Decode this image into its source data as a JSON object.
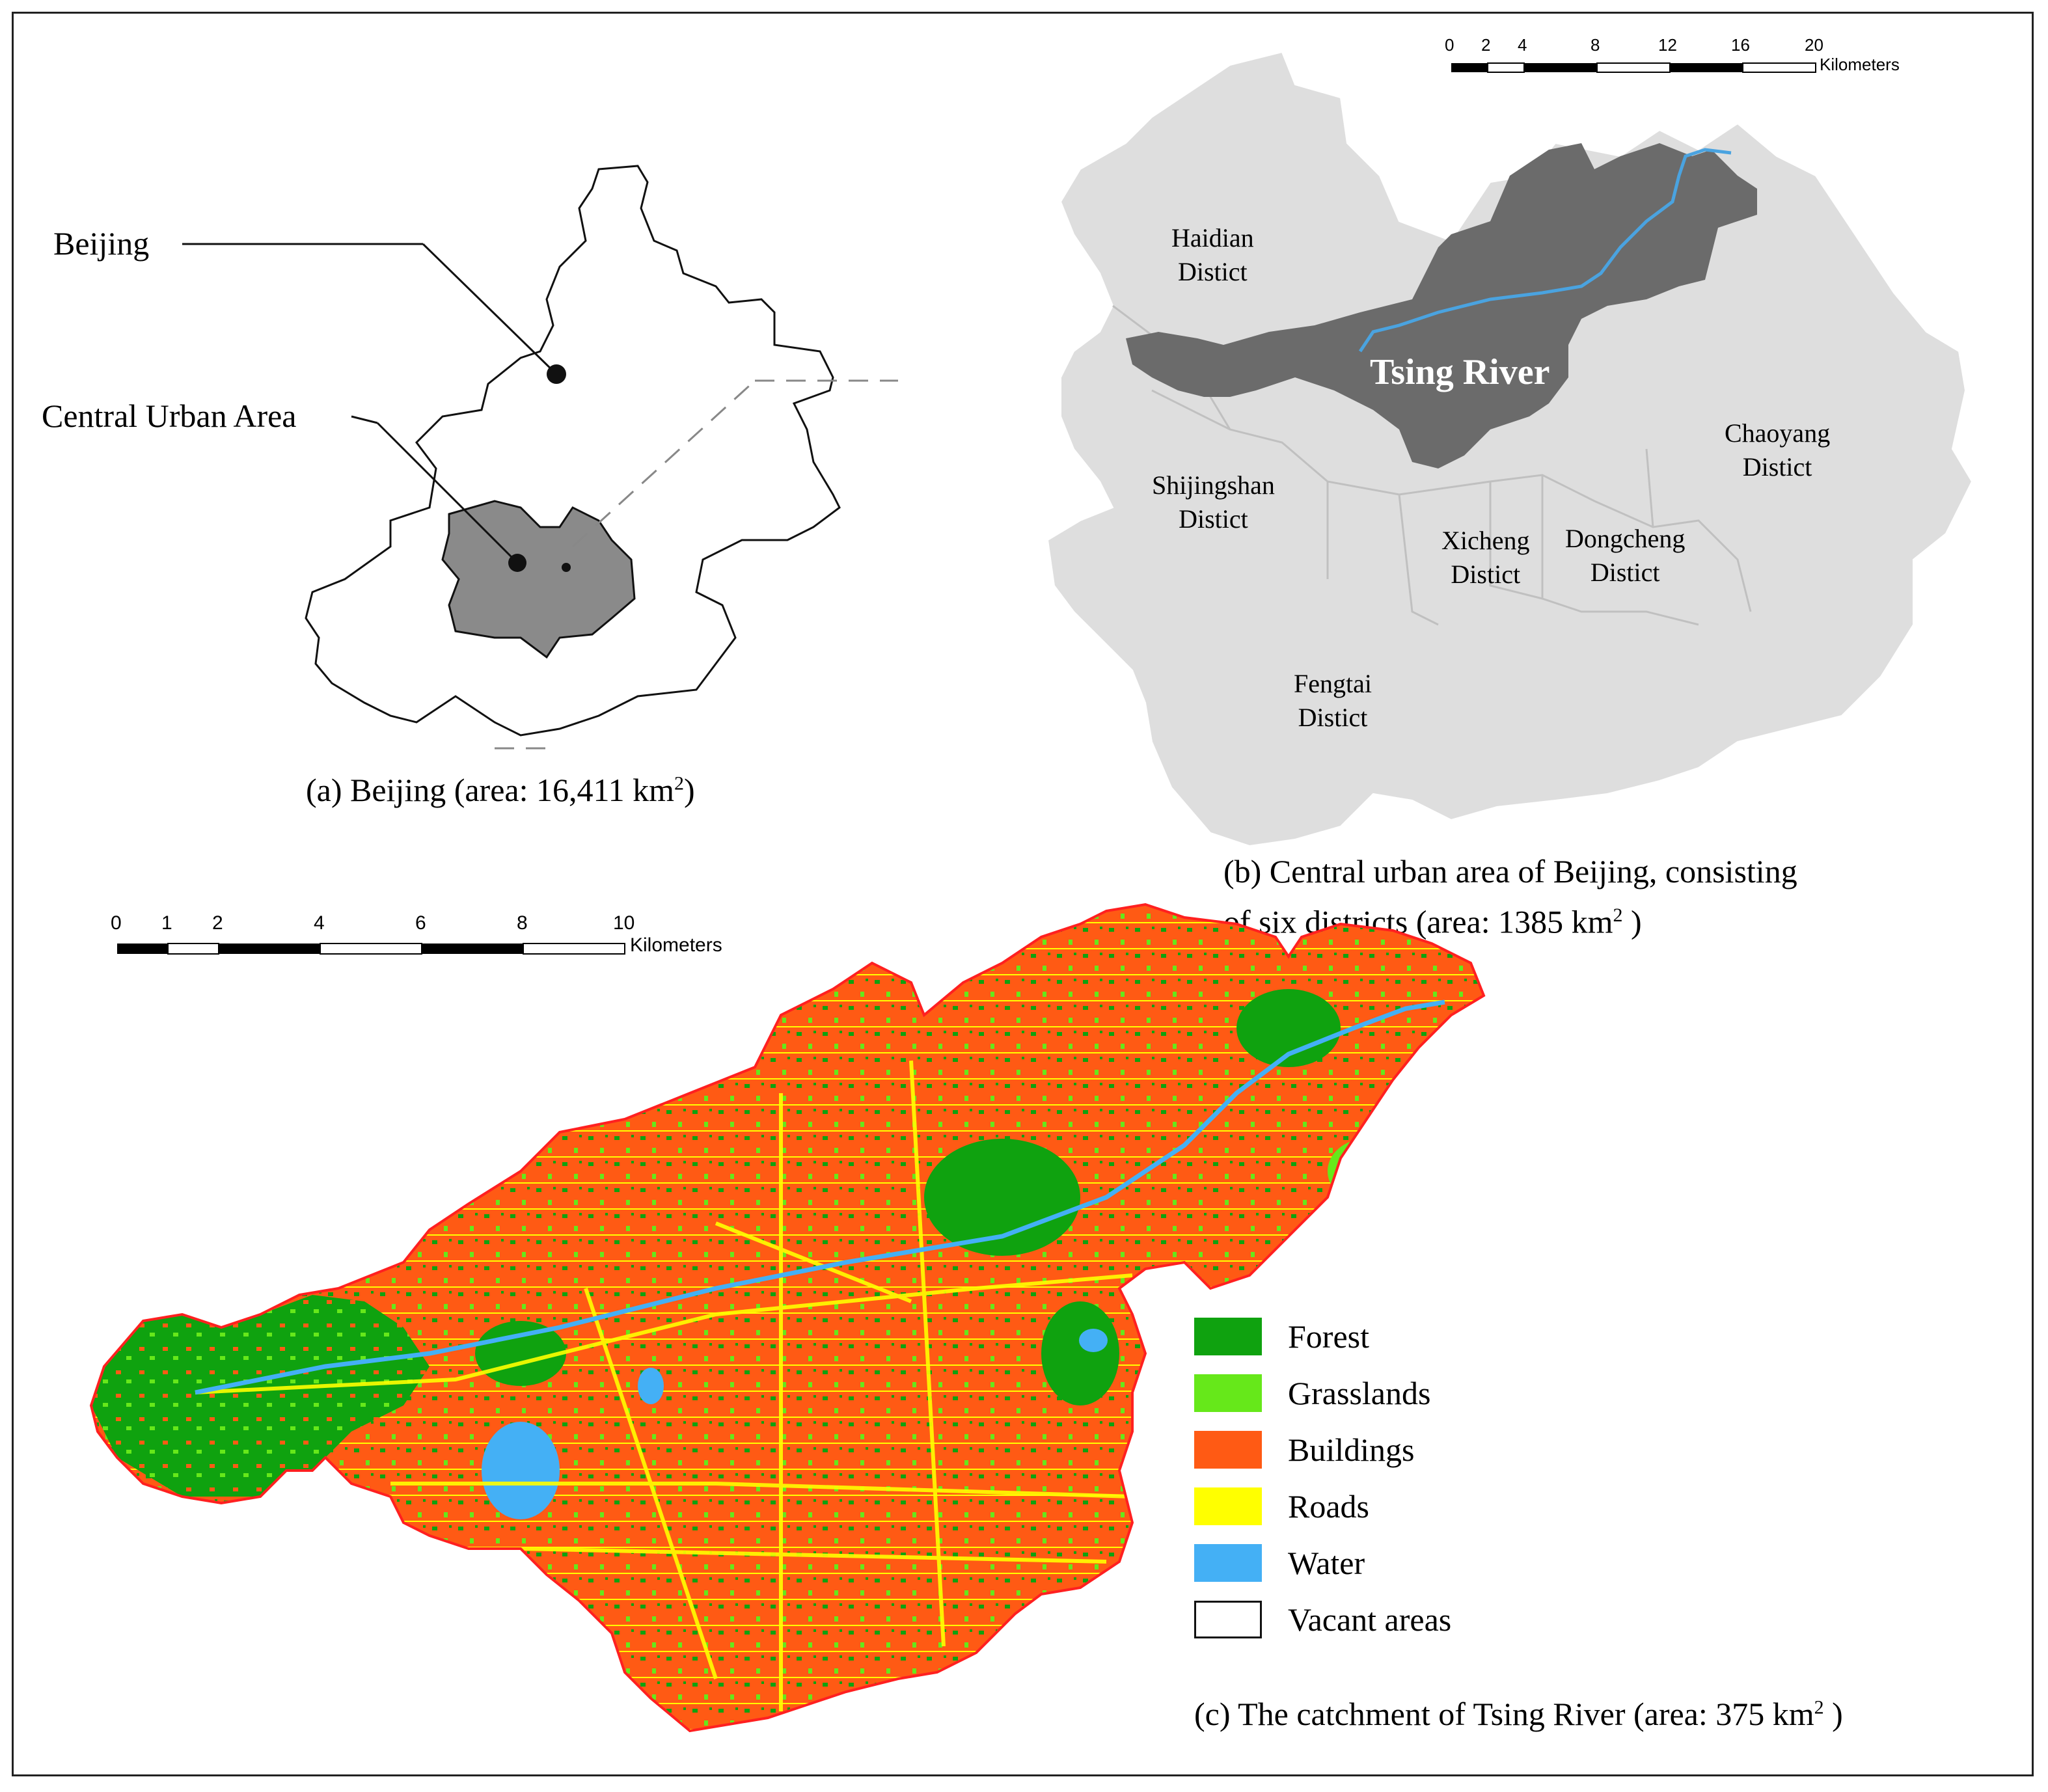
{
  "panel_a": {
    "label_beijing": "Beijing",
    "label_central": "Central Urban Area",
    "caption_main": "(a) Beijing (area: 16,411 km",
    "caption_sup": "2",
    "caption_end": ")",
    "fill_central": "#8a8a8a"
  },
  "panel_b": {
    "districts": {
      "haidian": [
        "Haidian",
        "Distict"
      ],
      "chaoyang": [
        "Chaoyang",
        "Distict"
      ],
      "shijingshan": [
        "Shijingshan",
        "Distict"
      ],
      "xicheng": [
        "Xicheng",
        "Distict"
      ],
      "dongcheng": [
        "Dongcheng",
        "Distict"
      ],
      "fengtai": [
        "Fengtai",
        "Distict"
      ]
    },
    "river_label": "Tsing River",
    "scale": {
      "ticks": [
        "0",
        "2",
        "4",
        "8",
        "12",
        "16",
        "20"
      ],
      "unit": "Kilometers"
    },
    "caption_line1": "(b) Central urban area of Beijing, consisting",
    "caption_line2_main": "of six districts (area: 1385 km",
    "caption_sup": "2",
    "caption_end": " )",
    "colors": {
      "district_fill": "#dedede",
      "catchment": "#6b6b6b",
      "river": "#4aa3e0"
    }
  },
  "panel_c": {
    "scale": {
      "ticks": [
        "0",
        "1",
        "2",
        "4",
        "6",
        "8",
        "10"
      ],
      "unit": "Kilometers"
    },
    "legend": [
      {
        "label": "Forest",
        "color": "#0fa20f"
      },
      {
        "label": "Grasslands",
        "color": "#66e81a"
      },
      {
        "label": "Buildings",
        "color": "#ff5a14"
      },
      {
        "label": "Roads",
        "color": "#ffff00"
      },
      {
        "label": "Water",
        "color": "#44b0f5"
      },
      {
        "label": "Vacant areas",
        "color": "#ffffff"
      }
    ],
    "caption_main": "(c) The catchment of Tsing River (area: 375 km",
    "caption_sup": "2",
    "caption_end": " )"
  }
}
